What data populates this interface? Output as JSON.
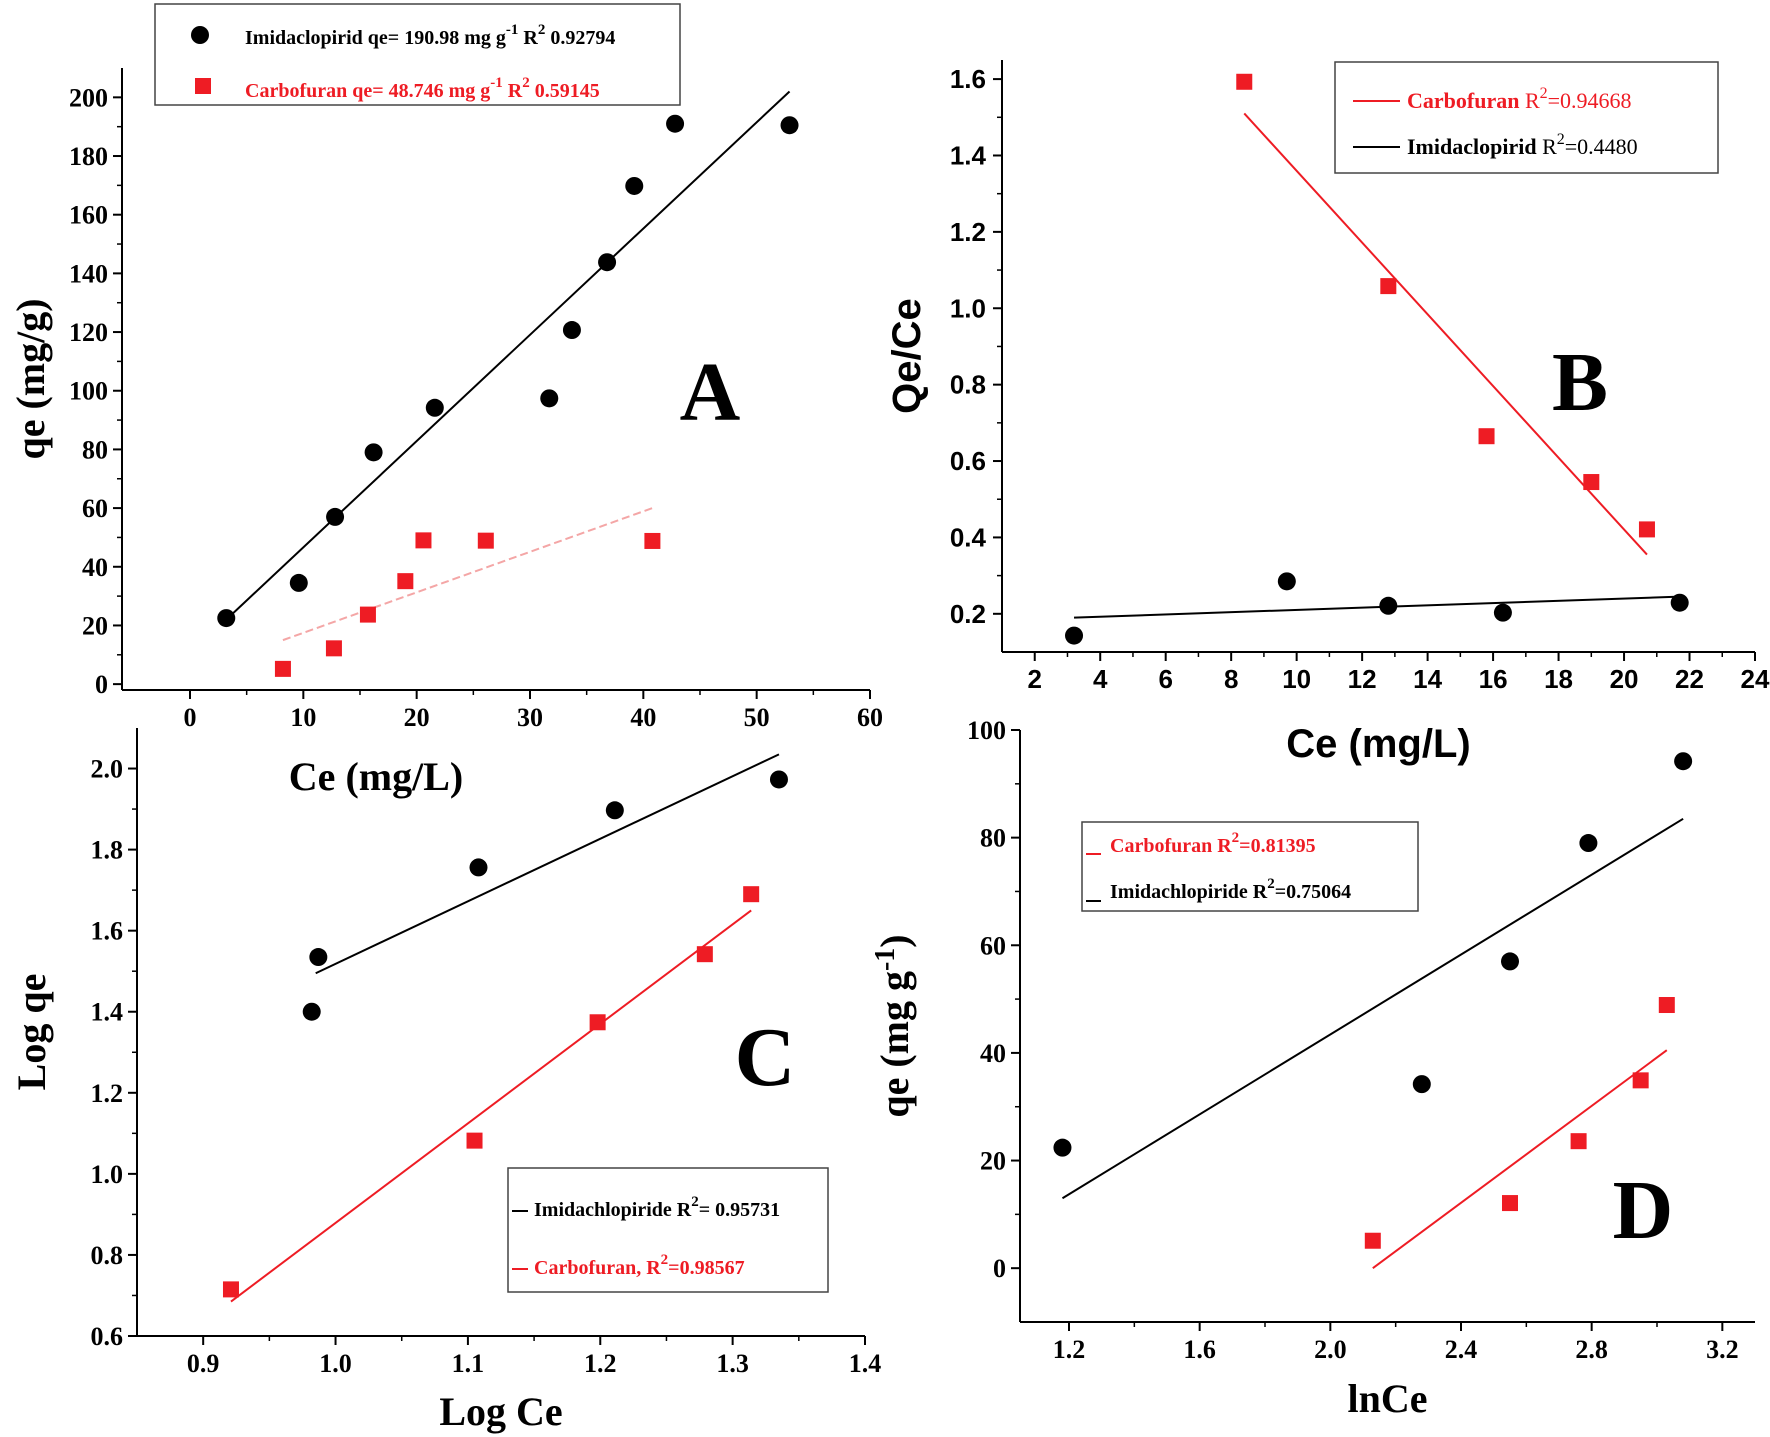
{
  "colors": {
    "imidacloprid": "#000000",
    "carbofuran": "#ee1c24",
    "carbofuran_fit_A": "#f4a6a6"
  },
  "chart_data": [
    {
      "panel": "A",
      "type": "scatter",
      "xlabel": "Ce (mg/L)",
      "ylabel": "qe (mg/g)",
      "xlim": [
        -6,
        60
      ],
      "ylim": [
        -2,
        210
      ],
      "xticks": [
        0,
        10,
        20,
        30,
        40,
        50,
        60
      ],
      "yticks": [
        0,
        20,
        40,
        60,
        80,
        100,
        120,
        140,
        160,
        180,
        200
      ],
      "legend_position": "top-left",
      "series": [
        {
          "name": "Imidacloprid",
          "legend_text": "Imidaclopirid qe= 190.98 mg g",
          "legend_sup1": "-1",
          "legend_mid": " R",
          "legend_sup2": "2",
          "legend_tail": " 0.92794",
          "marker": "circle",
          "x": [
            3.2,
            9.6,
            12.8,
            16.2,
            21.6,
            31.7,
            33.7,
            36.8,
            39.2,
            42.8,
            52.9
          ],
          "y": [
            22.5,
            34.5,
            57.0,
            79.0,
            94.2,
            97.4,
            120.7,
            143.8,
            169.8,
            191.0,
            190.5
          ],
          "fit": [
            [
              3.2,
              22.0
            ],
            [
              52.9,
              202.0
            ]
          ],
          "fit_style": "solid"
        },
        {
          "name": "Carbofuran",
          "legend_text": "Carbofuran qe= 48.746 mg g",
          "legend_sup1": "-1",
          "legend_mid": " R",
          "legend_sup2": "2",
          "legend_tail": " 0.59145",
          "marker": "square",
          "x": [
            8.2,
            12.7,
            15.7,
            19.0,
            20.6,
            26.1,
            40.8
          ],
          "y": [
            5.2,
            12.2,
            23.7,
            35.1,
            49.0,
            48.9,
            48.8
          ],
          "fit": [
            [
              8.2,
              15.0
            ],
            [
              40.8,
              60.0
            ]
          ],
          "fit_style": "dashed"
        }
      ]
    },
    {
      "panel": "B",
      "type": "scatter",
      "xlabel": "Ce (mg/L)",
      "ylabel": "Qe/Ce",
      "xlim": [
        1,
        24
      ],
      "ylim": [
        0.1,
        1.65
      ],
      "xticks": [
        2,
        4,
        6,
        8,
        10,
        12,
        14,
        16,
        18,
        20,
        22,
        24
      ],
      "yticks": [
        0.2,
        0.4,
        0.6,
        0.8,
        1.0,
        1.2,
        1.4,
        1.6
      ],
      "legend_position": "top-right",
      "series": [
        {
          "name": "Carbofuran",
          "legend_text": "Carbofuran",
          "legend_r": " R",
          "legend_sup": "2",
          "legend_tail": "=0.94668",
          "marker": "square",
          "x": [
            8.4,
            12.8,
            15.8,
            19.0,
            20.7
          ],
          "y": [
            1.593,
            1.058,
            0.665,
            0.545,
            0.421
          ],
          "fit": [
            [
              8.4,
              1.51
            ],
            [
              20.7,
              0.355
            ]
          ],
          "fit_style": "solid"
        },
        {
          "name": "Imidacloprid",
          "legend_text": "Imidaclopirid",
          "legend_r": " R",
          "legend_sup": "2",
          "legend_tail": "=0.4480",
          "marker": "circle",
          "x": [
            3.2,
            9.7,
            12.8,
            16.3,
            21.7
          ],
          "y": [
            0.143,
            0.285,
            0.221,
            0.203,
            0.229
          ],
          "fit": [
            [
              3.2,
              0.19
            ],
            [
              21.7,
              0.245
            ]
          ],
          "fit_style": "solid"
        }
      ]
    },
    {
      "panel": "C",
      "type": "scatter",
      "xlabel": "Log Ce",
      "ylabel": "Log qe",
      "xlim": [
        0.85,
        1.4
      ],
      "ylim": [
        0.6,
        2.1
      ],
      "xticks": [
        0.9,
        1.0,
        1.1,
        1.2,
        1.3,
        1.4
      ],
      "yticks": [
        0.6,
        0.8,
        1.0,
        1.2,
        1.4,
        1.6,
        1.8,
        2.0
      ],
      "legend_position": "bottom-right",
      "series": [
        {
          "name": "Imidachlopiride",
          "legend_text": "Imidachlopiride R",
          "legend_sup": "2",
          "legend_tail": "= 0.95731",
          "marker": "circle",
          "x": [
            0.982,
            0.987,
            1.108,
            1.211,
            1.335
          ],
          "y": [
            1.4,
            1.535,
            1.756,
            1.897,
            1.973
          ],
          "fit": [
            [
              0.985,
              1.495
            ],
            [
              1.335,
              2.035
            ]
          ],
          "fit_style": "solid"
        },
        {
          "name": "Carbofuran",
          "legend_text": "Carbofuran, R",
          "legend_sup": "2",
          "legend_tail": "=0.98567",
          "marker": "square",
          "x": [
            0.921,
            1.105,
            1.198,
            1.279,
            1.314
          ],
          "y": [
            0.715,
            1.082,
            1.374,
            1.542,
            1.69
          ],
          "fit": [
            [
              0.921,
              0.685
            ],
            [
              1.314,
              1.65
            ]
          ],
          "fit_style": "solid"
        }
      ]
    },
    {
      "panel": "D",
      "type": "scatter",
      "xlabel": "lnCe",
      "ylabel": "qe (mg g",
      "ylabel_sup": "-1",
      "ylabel_tail": ")",
      "xlim": [
        1.05,
        3.3
      ],
      "ylim": [
        -10,
        100
      ],
      "xticks": [
        1.2,
        1.6,
        2.0,
        2.4,
        2.8,
        3.2
      ],
      "yticks": [
        0,
        20,
        40,
        60,
        80,
        100
      ],
      "legend_position": "top-left",
      "series": [
        {
          "name": "Carbofuran",
          "legend_text": "Carbofuran R",
          "legend_sup": "2",
          "legend_tail": "=0.81395",
          "marker": "square",
          "x": [
            2.13,
            2.55,
            2.76,
            2.95,
            3.03
          ],
          "y": [
            5.1,
            12.1,
            23.6,
            34.9,
            48.9
          ],
          "fit": [
            [
              2.13,
              0.0
            ],
            [
              3.03,
              40.5
            ]
          ],
          "fit_style": "solid"
        },
        {
          "name": "Imidachlopiride",
          "legend_text": "Imidachlopiride R",
          "legend_sup": "2",
          "legend_tail": "=0.75064",
          "marker": "circle",
          "x": [
            1.18,
            2.28,
            2.55,
            2.79,
            3.08
          ],
          "y": [
            22.4,
            34.2,
            57.0,
            79.0,
            94.2
          ],
          "fit": [
            [
              1.18,
              13.0
            ],
            [
              3.08,
              83.5
            ]
          ],
          "fit_style": "solid"
        }
      ]
    }
  ]
}
